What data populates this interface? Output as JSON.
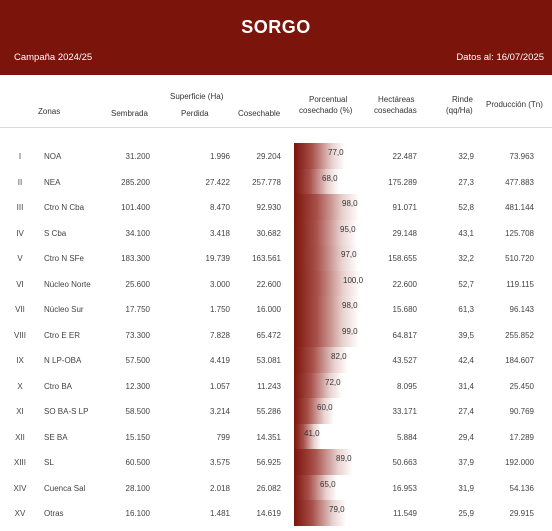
{
  "header": {
    "title": "SORGO",
    "campaign": "Campaña 2024/25",
    "date": "Datos al: 16/07/2025"
  },
  "columns": {
    "zonas": "Zonas",
    "superficie": "Superficie (Ha)",
    "sembrada": "Sembrada",
    "perdida": "Perdida",
    "cosechable": "Cosechable",
    "porcentual_1": "Porcentual",
    "porcentual_2": "cosechado (%)",
    "hectareas_1": "Hectáreas",
    "hectareas_2": "cosechadas",
    "rinde_1": "Rinde",
    "rinde_2": "(qq/Ha)",
    "produccion": "Producción (Tn)"
  },
  "colors": {
    "header_bg": "#7b140b",
    "bar_dark": "#7b140b"
  },
  "rows": [
    {
      "num": "I",
      "zona": "NOA",
      "sembrada": "31.200",
      "perdida": "1.996",
      "cosechable": "29.204",
      "pct": 77,
      "pct_label": "77,0",
      "hectareas": "22.487",
      "rinde": "32,9",
      "produccion": "73.963"
    },
    {
      "num": "II",
      "zona": "NEA",
      "sembrada": "285.200",
      "perdida": "27.422",
      "cosechable": "257.778",
      "pct": 68,
      "pct_label": "68,0",
      "hectareas": "175.289",
      "rinde": "27,3",
      "produccion": "477.883"
    },
    {
      "num": "III",
      "zona": "Ctro N Cba",
      "sembrada": "101.400",
      "perdida": "8.470",
      "cosechable": "92.930",
      "pct": 98,
      "pct_label": "98,0",
      "hectareas": "91.071",
      "rinde": "52,8",
      "produccion": "481.144"
    },
    {
      "num": "IV",
      "zona": "S Cba",
      "sembrada": "34.100",
      "perdida": "3.418",
      "cosechable": "30.682",
      "pct": 95,
      "pct_label": "95,0",
      "hectareas": "29.148",
      "rinde": "43,1",
      "produccion": "125.708"
    },
    {
      "num": "V",
      "zona": "Ctro N SFe",
      "sembrada": "183.300",
      "perdida": "19.739",
      "cosechable": "163.561",
      "pct": 97,
      "pct_label": "97,0",
      "hectareas": "158.655",
      "rinde": "32,2",
      "produccion": "510.720"
    },
    {
      "num": "VI",
      "zona": "Núcleo Norte",
      "sembrada": "25.600",
      "perdida": "3.000",
      "cosechable": "22.600",
      "pct": 100,
      "pct_label": "100,0",
      "hectareas": "22.600",
      "rinde": "52,7",
      "produccion": "119.115"
    },
    {
      "num": "VII",
      "zona": "Núcleo Sur",
      "sembrada": "17.750",
      "perdida": "1.750",
      "cosechable": "16.000",
      "pct": 98,
      "pct_label": "98,0",
      "hectareas": "15.680",
      "rinde": "61,3",
      "produccion": "96.143"
    },
    {
      "num": "VIII",
      "zona": "Ctro E ER",
      "sembrada": "73.300",
      "perdida": "7.828",
      "cosechable": "65.472",
      "pct": 99,
      "pct_label": "99,0",
      "hectareas": "64.817",
      "rinde": "39,5",
      "produccion": "255.852"
    },
    {
      "num": "IX",
      "zona": "N LP-OBA",
      "sembrada": "57.500",
      "perdida": "4.419",
      "cosechable": "53.081",
      "pct": 82,
      "pct_label": "82,0",
      "hectareas": "43.527",
      "rinde": "42,4",
      "produccion": "184.607"
    },
    {
      "num": "X",
      "zona": "Ctro BA",
      "sembrada": "12.300",
      "perdida": "1.057",
      "cosechable": "11.243",
      "pct": 72,
      "pct_label": "72,0",
      "hectareas": "8.095",
      "rinde": "31,4",
      "produccion": "25.450"
    },
    {
      "num": "XI",
      "zona": "SO BA-S LP",
      "sembrada": "58.500",
      "perdida": "3.214",
      "cosechable": "55.286",
      "pct": 60,
      "pct_label": "60,0",
      "hectareas": "33.171",
      "rinde": "27,4",
      "produccion": "90.769"
    },
    {
      "num": "XII",
      "zona": "SE BA",
      "sembrada": "15.150",
      "perdida": "799",
      "cosechable": "14.351",
      "pct": 41,
      "pct_label": "41,0",
      "hectareas": "5.884",
      "rinde": "29,4",
      "produccion": "17.289"
    },
    {
      "num": "XIII",
      "zona": "SL",
      "sembrada": "60.500",
      "perdida": "3.575",
      "cosechable": "56.925",
      "pct": 89,
      "pct_label": "89,0",
      "hectareas": "50.663",
      "rinde": "37,9",
      "produccion": "192.000"
    },
    {
      "num": "XIV",
      "zona": "Cuenca Sal",
      "sembrada": "28.100",
      "perdida": "2.018",
      "cosechable": "26.082",
      "pct": 65,
      "pct_label": "65,0",
      "hectareas": "16.953",
      "rinde": "31,9",
      "produccion": "54.136"
    },
    {
      "num": "XV",
      "zona": "Otras",
      "sembrada": "16.100",
      "perdida": "1.481",
      "cosechable": "14.619",
      "pct": 79,
      "pct_label": "79,0",
      "hectareas": "11.549",
      "rinde": "25,9",
      "produccion": "29.915"
    }
  ]
}
